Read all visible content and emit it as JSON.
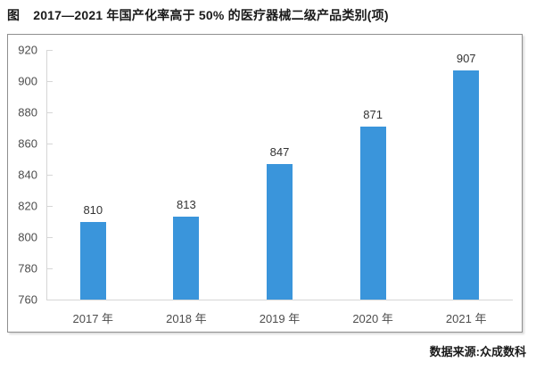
{
  "title": {
    "prefix": "图",
    "text": "2017—2021 年国产化率高于 50% 的医疗器械二级产品类别(项)"
  },
  "source": "数据来源:众成数科",
  "colors": {
    "bar": "#3a95db",
    "axis": "#d6d6d6",
    "frame_border": "#8f8f8f",
    "tick_label": "#4d4d4d",
    "value_label": "#333333"
  },
  "chart_data": {
    "type": "bar",
    "categories": [
      "2017 年",
      "2018 年",
      "2019 年",
      "2020 年",
      "2021 年"
    ],
    "values": [
      810,
      813,
      847,
      871,
      907
    ],
    "title": "图 2017—2021 年国产化率高于 50% 的医疗器械二级产品类别(项)",
    "xlabel": "",
    "ylabel": "",
    "ylim": [
      760,
      920
    ],
    "ytick_step": 20,
    "grid": false,
    "legend": "none",
    "data_labels": true,
    "annotation": "数据来源:众成数科"
  }
}
